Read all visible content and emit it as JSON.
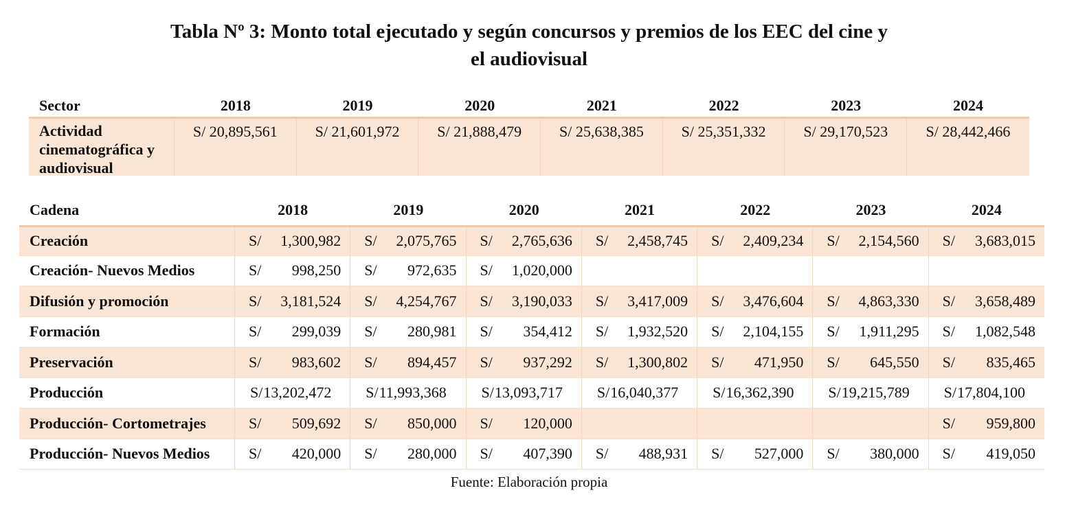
{
  "title": {
    "line1": "Tabla Nº 3: Monto total ejecutado y según concursos y premios de los EEC del cine y",
    "line2": "el audiovisual"
  },
  "sector_table": {
    "header": "Sector",
    "years": [
      "2018",
      "2019",
      "2020",
      "2021",
      "2022",
      "2023",
      "2024"
    ],
    "row": {
      "label_lines": [
        "Actividad",
        "cinematográfica y",
        "audiovisual"
      ],
      "values": [
        "S/ 20,895,561",
        "S/ 21,601,972",
        "S/ 21,888,479",
        "S/ 25,638,385",
        "S/ 25,351,332",
        "S/ 29,170,523",
        "S/ 28,442,466"
      ]
    }
  },
  "cadena_table": {
    "header": "Cadena",
    "years": [
      "2018",
      "2019",
      "2020",
      "2021",
      "2022",
      "2023",
      "2024"
    ],
    "currency": "S/",
    "rows": [
      {
        "label": "Creación",
        "values": [
          "1,300,982",
          "2,075,765",
          "2,765,636",
          "2,458,745",
          "2,409,234",
          "2,154,560",
          "3,683,015"
        ]
      },
      {
        "label": "Creación- Nuevos Medios",
        "values": [
          "998,250",
          "972,635",
          "1,020,000",
          "",
          "",
          "",
          ""
        ]
      },
      {
        "label": "Difusión y promoción",
        "values": [
          "3,181,524",
          "4,254,767",
          "3,190,033",
          "3,417,009",
          "3,476,604",
          "4,863,330",
          "3,658,489"
        ]
      },
      {
        "label": "Formación",
        "values": [
          "299,039",
          "280,981",
          "354,412",
          "1,932,520",
          "2,104,155",
          "1,911,295",
          "1,082,548"
        ]
      },
      {
        "label": "Preservación",
        "values": [
          "983,602",
          "894,457",
          "937,292",
          "1,300,802",
          "471,950",
          "645,550",
          "835,465"
        ]
      },
      {
        "label": "Producción",
        "values": [
          "13,202,472",
          "11,993,368",
          "13,093,717",
          "16,040,377",
          "16,362,390",
          "19,215,789",
          "17,804,100"
        ]
      },
      {
        "label": "Producción- Cortometrajes",
        "values": [
          "509,692",
          "850,000",
          "120,000",
          "",
          "",
          "",
          "959,800"
        ]
      },
      {
        "label": "Producción- Nuevos Medios",
        "values": [
          "420,000",
          "280,000",
          "407,390",
          "488,931",
          "527,000",
          "380,000",
          "419,050"
        ]
      }
    ]
  },
  "source": "Fuente: Elaboración propia",
  "colors": {
    "row_shade": "#fbe6d6",
    "rule": "#f0c7a8"
  }
}
